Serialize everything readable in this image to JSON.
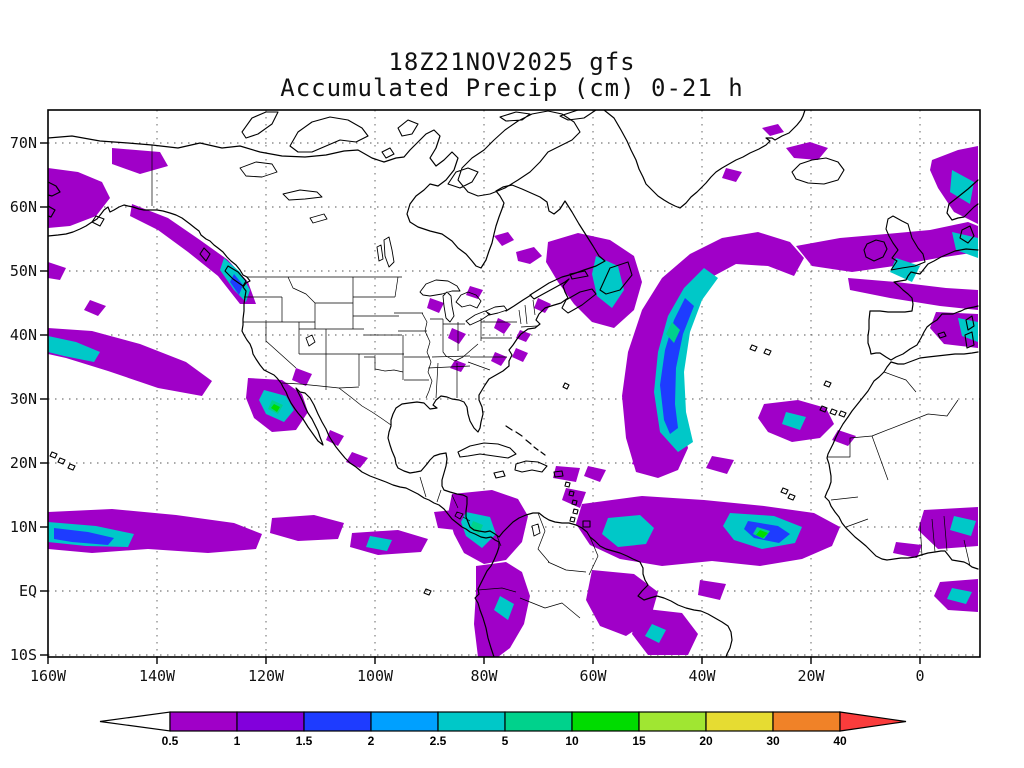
{
  "page": {
    "background": "#ffffff"
  },
  "title": {
    "line1": "18Z21NOV2025 gfs",
    "line2": "Accumulated Precip (cm) 0-21 h"
  },
  "chart_data": {
    "type": "heatmap",
    "title": "18Z21NOV2025 gfs",
    "subtitle": "Accumulated Precip (cm) 0-21 h",
    "model": "gfs",
    "cycle": "18Z21NOV2025",
    "variable": "Accumulated Precip",
    "units": "cm",
    "forecast_window_hours": "0-21",
    "grid": "dotted",
    "x_axis": {
      "ticks": [
        "160W",
        "140W",
        "120W",
        "100W",
        "80W",
        "60W",
        "40W",
        "20W",
        "0"
      ],
      "range_deg_lon": [
        -160,
        11
      ]
    },
    "y_axis": {
      "ticks": [
        "70N",
        "60N",
        "50N",
        "40N",
        "30N",
        "20N",
        "10N",
        "EQ",
        "10S"
      ],
      "range_deg_lat": [
        -10.3,
        75.2
      ]
    },
    "colorbar": {
      "levels": [
        "0.5",
        "1",
        "1.5",
        "2",
        "2.5",
        "5",
        "10",
        "15",
        "20",
        "30",
        "40"
      ],
      "colors": [
        "#ffffff",
        "#a000c8",
        "#8200dc",
        "#1e3cff",
        "#00a0ff",
        "#00c8c8",
        "#00d28c",
        "#00dc00",
        "#a0e632",
        "#e6dc32",
        "#f08228",
        "#fa3c3c"
      ],
      "below_min_color": "#ffffff",
      "above_max_color": "#fa3c3c"
    },
    "features": [
      {
        "region": "Gulf of Alaska / British Columbia coast",
        "lon_range": [
          "155W",
          "125W"
        ],
        "lat_range": [
          "50N",
          "62N"
        ],
        "value_cm": "0.5-5"
      },
      {
        "region": "NE Pacific mid-latitude band at west edge",
        "lon_range": [
          "160W",
          "130W"
        ],
        "lat_range": [
          "38N",
          "45N"
        ],
        "value_cm": "0.5-2.5"
      },
      {
        "region": "Low off Southern California / Baja",
        "lon_range": [
          "122W",
          "112W"
        ],
        "lat_range": [
          "28N",
          "36N"
        ],
        "value_cm": "0.5-10"
      },
      {
        "region": "Scattered Midwest / Great Lakes / Northeast US showers",
        "lon_range": [
          "95W",
          "70W"
        ],
        "lat_range": [
          "35N",
          "48N"
        ],
        "value_cm": "0.5-1"
      },
      {
        "region": "Atlantic Canada / Labrador Sea system",
        "lon_range": [
          "70W",
          "45W"
        ],
        "lat_range": [
          "40N",
          "56N"
        ],
        "value_cm": "0.5-5"
      },
      {
        "region": "Central North Atlantic comma-shaped storm",
        "lon_range": [
          "50W",
          "20W"
        ],
        "lat_range": [
          "20N",
          "52N"
        ],
        "value_cm": "0.5-10"
      },
      {
        "region": "NE Atlantic band toward UK / Biscay and Norway coast",
        "lon_range": [
          "30W",
          "10E"
        ],
        "lat_range": [
          "45N",
          "68N"
        ],
        "value_cm": "0.5-5"
      },
      {
        "region": "Offshore Iberia at east edge",
        "lon_range": [
          "12W",
          "5E"
        ],
        "lat_range": [
          "37N",
          "44N"
        ],
        "value_cm": "0.5-5"
      },
      {
        "region": "Subtropical Atlantic near Azores / Morocco",
        "lon_range": [
          "22W",
          "10W"
        ],
        "lat_range": [
          "28N",
          "33N"
        ],
        "value_cm": "0.5-5"
      },
      {
        "region": "East Pacific ITCZ",
        "lon_range": [
          "160W",
          "85W"
        ],
        "lat_range": [
          "5N",
          "12N"
        ],
        "value_cm": "0.5-10"
      },
      {
        "region": "Panama / Colombia",
        "lon_range": [
          "85W",
          "73W"
        ],
        "lat_range": [
          "2N",
          "13N"
        ],
        "value_cm": "0.5-10"
      },
      {
        "region": "Atlantic ITCZ",
        "lon_range": [
          "62W",
          "15W"
        ],
        "lat_range": [
          "3N",
          "12N"
        ],
        "value_cm": "0.5-15"
      },
      {
        "region": "Amazon basin / Peru",
        "lon_range": [
          "80W",
          "35W"
        ],
        "lat_range": [
          "10S",
          "2N"
        ],
        "value_cm": "0.5-10"
      },
      {
        "region": "West Africa / Gulf of Guinea coast at east edge",
        "lon_range": [
          "5W",
          "11E"
        ],
        "lat_range": [
          "0",
          "15N"
        ],
        "value_cm": "0.5-5"
      }
    ]
  }
}
